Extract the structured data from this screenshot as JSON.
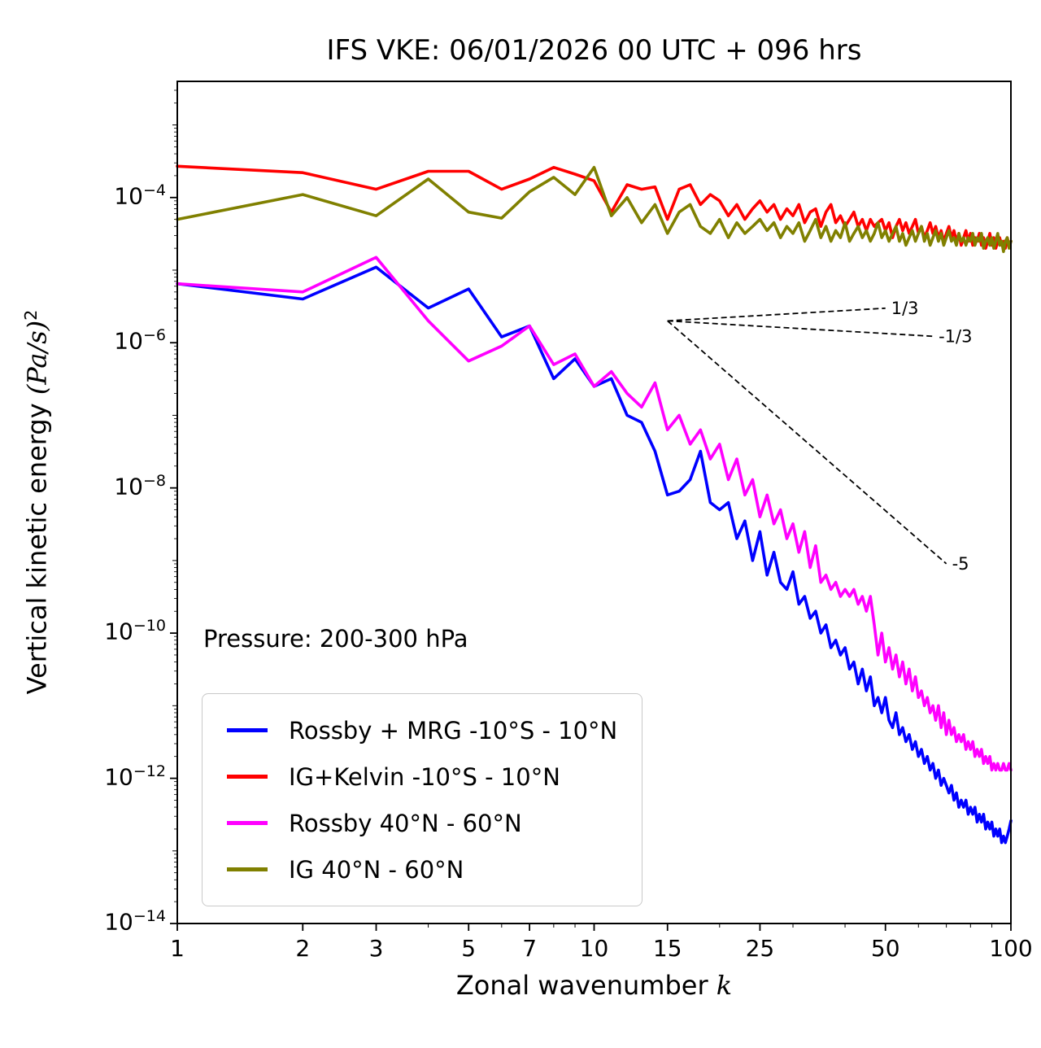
{
  "title": "IFS VKE: 06/01/2026 00 UTC + 096 hrs",
  "axes": {
    "xlabel_prefix": "Zonal wavenumber ",
    "xlabel_var": "k",
    "ylabel_prefix": "Vertical kinetic energy ",
    "ylabel_units": "(Pa/s)",
    "ylabel_exponent": "2",
    "x_scale": "log",
    "y_scale": "log",
    "xlim": [
      1,
      100
    ],
    "ylim_log10": [
      -14,
      -2.4
    ],
    "x_ticks": [
      1,
      2,
      3,
      5,
      7,
      10,
      15,
      25,
      50,
      100
    ],
    "x_minor_ticks": [
      4,
      6,
      8,
      9,
      20,
      30,
      40,
      60,
      70,
      80,
      90
    ],
    "y_tick_exponents": [
      -4,
      -6,
      -8,
      -10,
      -12,
      -14
    ]
  },
  "annotations": {
    "pressure_label": "Pressure: 200-300 hPa",
    "slope_guides": [
      {
        "label": "1/3",
        "slope": 0.3333,
        "k_start": 15,
        "k_end": 50,
        "y_start": 2e-06
      },
      {
        "label": "-1/3",
        "slope": -0.3333,
        "k_start": 15,
        "k_end": 65,
        "y_start": 2e-06
      },
      {
        "label": "-5",
        "slope": -5,
        "k_start": 15,
        "k_end": 70,
        "y_start": 2e-06
      }
    ]
  },
  "chart_data": {
    "type": "line",
    "title": "IFS VKE: 06/01/2026 00 UTC + 096 hrs",
    "xlabel": "Zonal wavenumber k",
    "ylabel": "Vertical kinetic energy (Pa/s)^2",
    "x_axis": "zonal wavenumber, log scale 1-100",
    "y_axis": "log scale 1e-14 to ~4e-3 (Pa/s)^2",
    "legend_position": "lower left",
    "grid": false,
    "x": [
      1,
      2,
      3,
      4,
      5,
      6,
      7,
      8,
      9,
      10,
      11,
      12,
      13,
      14,
      15,
      16,
      17,
      18,
      19,
      20,
      21,
      22,
      23,
      24,
      25,
      26,
      27,
      28,
      29,
      30,
      31,
      32,
      33,
      34,
      35,
      36,
      37,
      38,
      39,
      40,
      41,
      42,
      43,
      44,
      45,
      46,
      47,
      48,
      49,
      50,
      51,
      52,
      53,
      54,
      55,
      56,
      57,
      58,
      59,
      60,
      61,
      62,
      63,
      64,
      65,
      66,
      67,
      68,
      69,
      70,
      71,
      72,
      73,
      74,
      75,
      76,
      77,
      78,
      79,
      80,
      81,
      82,
      83,
      84,
      85,
      86,
      87,
      88,
      89,
      90,
      91,
      92,
      93,
      94,
      95,
      96,
      97,
      98,
      99,
      100
    ],
    "series": [
      {
        "name": "Rossby + MRG -10°S - 10°N",
        "color": "#0000ff",
        "values": [
          6.5e-06,
          4e-06,
          1.1e-05,
          3e-06,
          5.5e-06,
          1.2e-06,
          1.7e-06,
          3.2e-07,
          6e-07,
          2.5e-07,
          3.2e-07,
          1e-07,
          8e-08,
          3.2e-08,
          8e-09,
          9e-09,
          1.3e-08,
          3.2e-08,
          6.3e-09,
          5e-09,
          6.3e-09,
          2e-09,
          3.5e-09,
          1e-09,
          2.5e-09,
          6.3e-10,
          1.3e-09,
          5e-10,
          4e-10,
          7e-10,
          2.5e-10,
          3.2e-10,
          1.6e-10,
          2e-10,
          1e-10,
          1.3e-10,
          6.3e-11,
          8e-11,
          5e-11,
          6.3e-11,
          3.2e-11,
          4e-11,
          2e-11,
          3.2e-11,
          1.6e-11,
          2.5e-11,
          1e-11,
          1.3e-11,
          8e-12,
          1.3e-11,
          6.3e-12,
          5e-12,
          8e-12,
          4e-12,
          5e-12,
          3.2e-12,
          4e-12,
          2.5e-12,
          3.2e-12,
          2e-12,
          2.5e-12,
          1.6e-12,
          2e-12,
          1.3e-12,
          1.6e-12,
          1e-12,
          1.3e-12,
          8e-13,
          1e-12,
          8e-13,
          6.3e-13,
          8e-13,
          5e-13,
          6.3e-13,
          4e-13,
          5e-13,
          4e-13,
          5e-13,
          3.2e-13,
          4e-13,
          3.2e-13,
          4e-13,
          2.5e-13,
          3.2e-13,
          2.5e-13,
          3.2e-13,
          2e-13,
          2.5e-13,
          2e-13,
          2.5e-13,
          1.6e-13,
          2e-13,
          1.6e-13,
          2e-13,
          1.3e-13,
          1.6e-13,
          1.3e-13,
          1.6e-13,
          2e-13,
          2.6e-13
        ]
      },
      {
        "name": "IG+Kelvin -10°S - 10°N",
        "color": "#ff0000",
        "values": [
          0.00027,
          0.00022,
          0.00013,
          0.00023,
          0.00023,
          0.00013,
          0.00018,
          0.00026,
          0.00021,
          0.00017,
          6.3e-05,
          0.00015,
          0.00013,
          0.00014,
          5e-05,
          0.00013,
          0.00015,
          8e-05,
          0.00011,
          9e-05,
          5.6e-05,
          8e-05,
          5e-05,
          7e-05,
          9e-05,
          6.3e-05,
          8e-05,
          5e-05,
          7e-05,
          5.6e-05,
          8e-05,
          4.5e-05,
          6.3e-05,
          7e-05,
          4e-05,
          6.3e-05,
          8e-05,
          4.5e-05,
          5.6e-05,
          4e-05,
          5e-05,
          6.3e-05,
          4e-05,
          5e-05,
          3.5e-05,
          5e-05,
          4e-05,
          4.5e-05,
          5e-05,
          3.5e-05,
          4.5e-05,
          2.8e-05,
          4e-05,
          5e-05,
          3.5e-05,
          4.5e-05,
          3.2e-05,
          4e-05,
          5e-05,
          3.2e-05,
          4e-05,
          2.8e-05,
          3.5e-05,
          4.5e-05,
          3.2e-05,
          4e-05,
          2.8e-05,
          3.5e-05,
          2.5e-05,
          3.2e-05,
          4e-05,
          2.8e-05,
          3.5e-05,
          2.5e-05,
          3.2e-05,
          2.2e-05,
          2.8e-05,
          3.5e-05,
          2.5e-05,
          3.2e-05,
          2.2e-05,
          2.8e-05,
          2.5e-05,
          3.2e-05,
          2.2e-05,
          2.8e-05,
          2e-05,
          2.5e-05,
          3.2e-05,
          2.2e-05,
          2.8e-05,
          2e-05,
          2.5e-05,
          2.8e-05,
          2.2e-05,
          2.5e-05,
          2e-05,
          2.8e-05,
          2.2e-05,
          2.5e-05
        ]
      },
      {
        "name": "Rossby 40°N - 60°N",
        "color": "#ff00ff",
        "values": [
          6.5e-06,
          5e-06,
          1.5e-05,
          2e-06,
          5.6e-07,
          9e-07,
          1.7e-06,
          5e-07,
          7e-07,
          2.5e-07,
          4e-07,
          2e-07,
          1.3e-07,
          2.8e-07,
          6.3e-08,
          1e-07,
          4e-08,
          6.3e-08,
          2.5e-08,
          4e-08,
          1.3e-08,
          2.5e-08,
          8e-09,
          1.3e-08,
          4e-09,
          8e-09,
          3.2e-09,
          5e-09,
          2e-09,
          3.2e-09,
          1.3e-09,
          2.5e-09,
          8e-10,
          1.6e-09,
          5e-10,
          6.3e-10,
          4e-10,
          5e-10,
          3.2e-10,
          4e-10,
          3.2e-10,
          4e-10,
          2.5e-10,
          3.2e-10,
          2e-10,
          3.2e-10,
          1.3e-10,
          5e-11,
          1e-10,
          4e-11,
          6.3e-11,
          3.2e-11,
          5e-11,
          2.5e-11,
          4e-11,
          2e-11,
          3.2e-11,
          1.6e-11,
          2.5e-11,
          1.3e-11,
          1.6e-11,
          1e-11,
          1.3e-11,
          8e-12,
          1e-11,
          6.3e-12,
          1e-11,
          5e-12,
          8e-12,
          4e-12,
          6.3e-12,
          4e-12,
          5e-12,
          3.2e-12,
          4e-12,
          3.2e-12,
          4e-12,
          2.5e-12,
          3.2e-12,
          2.5e-12,
          3.2e-12,
          2e-12,
          2.5e-12,
          2e-12,
          2.5e-12,
          1.6e-12,
          2e-12,
          1.6e-12,
          2e-12,
          1.3e-12,
          1.6e-12,
          1.3e-12,
          1.6e-12,
          1.3e-12,
          1.3e-12,
          1.6e-12,
          1.3e-12,
          1.3e-12,
          1.6e-12,
          1.3e-12
        ]
      },
      {
        "name": "IG 40°N - 60°N",
        "color": "#808000",
        "values": [
          5e-05,
          0.00011,
          5.6e-05,
          0.00018,
          6.3e-05,
          5.2e-05,
          0.00012,
          0.00019,
          0.00011,
          0.00026,
          5.6e-05,
          0.0001,
          4.5e-05,
          8e-05,
          3.2e-05,
          6.3e-05,
          8e-05,
          4e-05,
          3.2e-05,
          5e-05,
          2.8e-05,
          4.5e-05,
          3.2e-05,
          4e-05,
          5e-05,
          3.5e-05,
          4.5e-05,
          2.8e-05,
          4e-05,
          3.2e-05,
          4.5e-05,
          2.5e-05,
          3.5e-05,
          5e-05,
          2.8e-05,
          4e-05,
          2.5e-05,
          3.5e-05,
          2.8e-05,
          4.5e-05,
          2.5e-05,
          3.2e-05,
          4e-05,
          2.8e-05,
          3.5e-05,
          2.5e-05,
          3.2e-05,
          4.5e-05,
          2.8e-05,
          3.5e-05,
          2.5e-05,
          3.2e-05,
          4e-05,
          2.5e-05,
          3.2e-05,
          2.2e-05,
          2.8e-05,
          3.5e-05,
          2.5e-05,
          3.2e-05,
          4e-05,
          2.5e-05,
          3.2e-05,
          2.2e-05,
          2.8e-05,
          3.5e-05,
          2.5e-05,
          3.2e-05,
          2.2e-05,
          2.8e-05,
          3.5e-05,
          2.5e-05,
          2.8e-05,
          2.2e-05,
          3.2e-05,
          2.5e-05,
          2.8e-05,
          2.2e-05,
          2.8e-05,
          2.5e-05,
          3.2e-05,
          2.2e-05,
          2.8e-05,
          2.5e-05,
          3.2e-05,
          2e-05,
          2.5e-05,
          2.8e-05,
          2.2e-05,
          2.8e-05,
          2e-05,
          2.5e-05,
          3.2e-05,
          2.2e-05,
          2.5e-05,
          1.8e-05,
          2.5e-05,
          2.8e-05,
          2e-05,
          2.5e-05
        ]
      }
    ]
  }
}
